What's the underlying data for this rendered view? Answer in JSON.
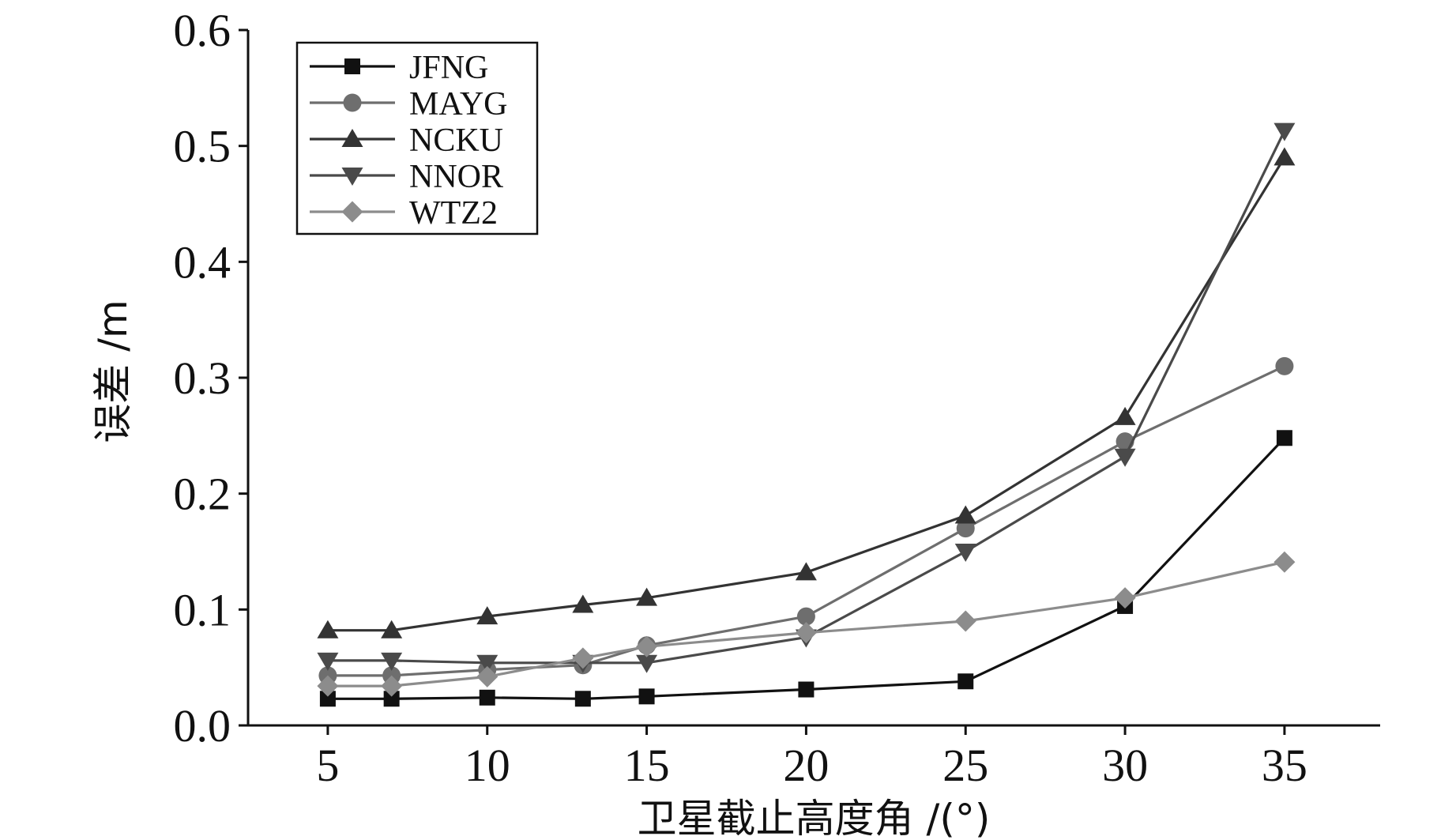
{
  "chart_data": {
    "type": "line",
    "xlabel": "卫星截止高度角 /(°)",
    "ylabel": "误差 /m",
    "x": [
      5,
      7,
      10,
      13,
      15,
      20,
      25,
      30,
      35
    ],
    "xticks": [
      "5",
      "10",
      "15",
      "20",
      "25",
      "30",
      "35"
    ],
    "xtick_values": [
      5,
      10,
      15,
      20,
      25,
      30,
      35
    ],
    "yticks": [
      "0.0",
      "0.1",
      "0.2",
      "0.3",
      "0.4",
      "0.5",
      "0.6"
    ],
    "ytick_values": [
      0.0,
      0.1,
      0.2,
      0.3,
      0.4,
      0.5,
      0.6
    ],
    "xlim": [
      2.5,
      38.0
    ],
    "ylim": [
      0.0,
      0.6
    ],
    "grid": false,
    "legend_position": "top-left",
    "series": [
      {
        "name": "JFNG",
        "marker": "square",
        "color": "#111111",
        "values": [
          0.023,
          0.023,
          0.024,
          0.023,
          0.025,
          0.031,
          0.038,
          0.103,
          0.248
        ]
      },
      {
        "name": "MAYG",
        "marker": "circle",
        "color": "#6e6e6e",
        "values": [
          0.043,
          0.043,
          0.048,
          0.052,
          0.069,
          0.094,
          0.17,
          0.245,
          0.31
        ]
      },
      {
        "name": "NCKU",
        "marker": "triangle-up",
        "color": "#333333",
        "values": [
          0.082,
          0.082,
          0.094,
          0.104,
          0.11,
          0.132,
          0.181,
          0.266,
          0.49
        ]
      },
      {
        "name": "NNOR",
        "marker": "triangle-down",
        "color": "#4a4a4a",
        "values": [
          0.056,
          0.056,
          0.054,
          0.054,
          0.054,
          0.076,
          0.15,
          0.232,
          0.513
        ]
      },
      {
        "name": "WTZ2",
        "marker": "diamond",
        "color": "#8c8c8c",
        "values": [
          0.034,
          0.034,
          0.042,
          0.058,
          0.068,
          0.08,
          0.09,
          0.11,
          0.141
        ]
      }
    ]
  }
}
